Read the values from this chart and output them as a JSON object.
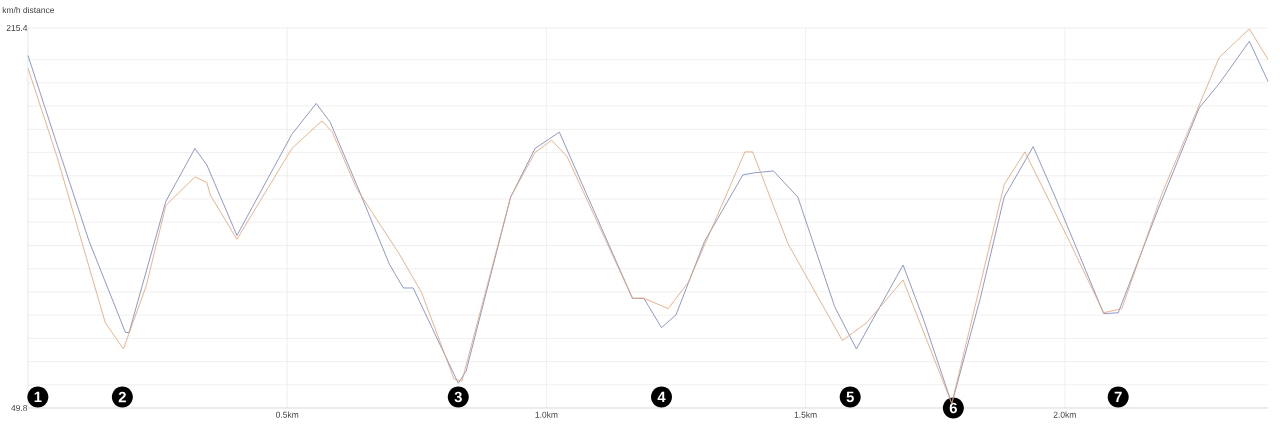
{
  "chart_data": {
    "type": "line",
    "ylabel": "km/h",
    "xlabel": "distance",
    "xlim": [
      0,
      2.392
    ],
    "ylim": [
      49.8,
      215.4
    ],
    "xticks": [
      {
        "value": 0.5,
        "label": "0.5km"
      },
      {
        "value": 1.0,
        "label": "1.0km"
      },
      {
        "value": 1.5,
        "label": "1.5km"
      },
      {
        "value": 2.0,
        "label": "2.0km"
      }
    ],
    "yticks": [
      49.8,
      {
        "value": 59.9,
        "label": null
      },
      {
        "value": 70.0,
        "label": null
      },
      {
        "value": 80.1,
        "label": null
      },
      {
        "value": 90.3,
        "label": null
      },
      {
        "value": 100.4,
        "label": null
      },
      {
        "value": 110.5,
        "label": null
      },
      {
        "value": 120.6,
        "label": null
      },
      {
        "value": 130.8,
        "label": null
      },
      {
        "value": 140.9,
        "label": null
      },
      {
        "value": 151.0,
        "label": null
      },
      {
        "value": 161.1,
        "label": null
      },
      {
        "value": 171.2,
        "label": null
      },
      {
        "value": 181.4,
        "label": null
      },
      {
        "value": 191.5,
        "label": null
      },
      {
        "value": 201.6,
        "label": null
      },
      215.4
    ],
    "grid": true,
    "marker": "none",
    "line_style": "solid",
    "series": [
      {
        "color": "#7080c0",
        "x": [
          0,
          0.056,
          0.118,
          0.188,
          0.195,
          0.266,
          0.322,
          0.345,
          0.403,
          0.509,
          0.556,
          0.583,
          0.634,
          0.697,
          0.724,
          0.743,
          0.83,
          0.845,
          0.931,
          0.978,
          1.025,
          1.056,
          1.166,
          1.188,
          1.222,
          1.25,
          1.305,
          1.379,
          1.402,
          1.438,
          1.485,
          1.556,
          1.598,
          1.688,
          1.727,
          1.782,
          1.837,
          1.883,
          1.939,
          1.985,
          2.075,
          2.103,
          2.18,
          2.259,
          2.298,
          2.356,
          2.392
        ],
        "values": [
          203.4,
          164.6,
          122.4,
          82.7,
          82.7,
          139.9,
          162.9,
          155.7,
          125.0,
          169.1,
          182.5,
          174.3,
          147.1,
          112.5,
          102.1,
          102.1,
          60.6,
          65.8,
          141.7,
          162.9,
          170.0,
          154.0,
          97.6,
          97.6,
          84.8,
          90.4,
          122.4,
          151.4,
          152.3,
          153.1,
          141.7,
          94.0,
          75.5,
          112.1,
          88.7,
          51.7,
          97.6,
          141.7,
          163.7,
          139.9,
          90.9,
          91.3,
          136.4,
          180.5,
          191.2,
          209.6,
          192.1
        ]
      },
      {
        "color": "#e8a070",
        "x": [
          0,
          0.056,
          0.149,
          0.184,
          0.228,
          0.266,
          0.322,
          0.345,
          0.352,
          0.403,
          0.509,
          0.567,
          0.587,
          0.634,
          0.716,
          0.759,
          0.822,
          0.837,
          0.931,
          0.978,
          1.01,
          1.04,
          1.166,
          1.188,
          1.235,
          1.274,
          1.383,
          1.398,
          1.466,
          1.571,
          1.618,
          1.688,
          1.782,
          1.883,
          1.923,
          2.009,
          2.075,
          2.11,
          2.188,
          2.298,
          2.356,
          2.392
        ],
        "values": [
          197.8,
          159.3,
          87.0,
          75.5,
          103.0,
          138.1,
          150.5,
          148.0,
          142.5,
          123.3,
          162.9,
          174.9,
          170.0,
          145.4,
          117.0,
          100.2,
          62.3,
          61.5,
          141.7,
          161.1,
          166.5,
          159.3,
          97.6,
          97.6,
          93.1,
          104.7,
          161.4,
          161.4,
          121.4,
          79.2,
          87.0,
          105.6,
          51.7,
          147.1,
          161.4,
          122.4,
          91.3,
          93.1,
          143.5,
          202.6,
          215.0,
          201.7
        ]
      }
    ],
    "annotations": [
      {
        "text": "1",
        "x": 0.019,
        "y": 54.6
      },
      {
        "text": "2",
        "x": 0.182,
        "y": 54.6
      },
      {
        "text": "3",
        "x": 0.83,
        "y": 54.6
      },
      {
        "text": "4",
        "x": 1.222,
        "y": 54.6
      },
      {
        "text": "5",
        "x": 1.586,
        "y": 54.6
      },
      {
        "text": "6",
        "x": 1.785,
        "y": 49.8
      },
      {
        "text": "7",
        "x": 2.103,
        "y": 54.6
      }
    ]
  }
}
